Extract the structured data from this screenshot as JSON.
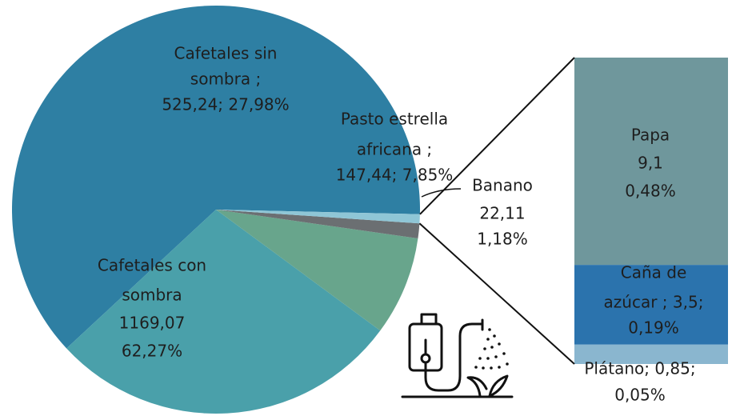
{
  "chart_data": {
    "type": "pie-of-bar",
    "values": [
      1169.07,
      525.24,
      147.44,
      22.11,
      13.45
    ],
    "colors": [
      "#2e7fa3",
      "#4aa0aa",
      "#68a58c",
      "#6b6f72",
      "#8fc6d6"
    ],
    "value_labels": [
      [
        "Cafetales con",
        "sombra",
        "1169,07",
        "62,27%"
      ],
      [
        "Cafetales sin",
        "sombra ;",
        "525,24; 27,98%"
      ],
      [
        "Pasto estrella",
        "africana ;",
        "147,44; 7,85%"
      ],
      [
        "Banano",
        "22,11",
        "1,18%"
      ],
      null
    ],
    "bar": {
      "values": [
        9.1,
        3.5,
        0.85
      ],
      "colors": [
        "#6f979c",
        "#2b73ad",
        "#8ab6cf"
      ],
      "value_labels": [
        [
          "Papa",
          "9,1",
          "0,48%"
        ],
        [
          "Caña de",
          "azúcar ; 3,5;",
          "0,19%"
        ],
        [
          "Plátano; 0,85;",
          "0,05%"
        ]
      ]
    }
  }
}
